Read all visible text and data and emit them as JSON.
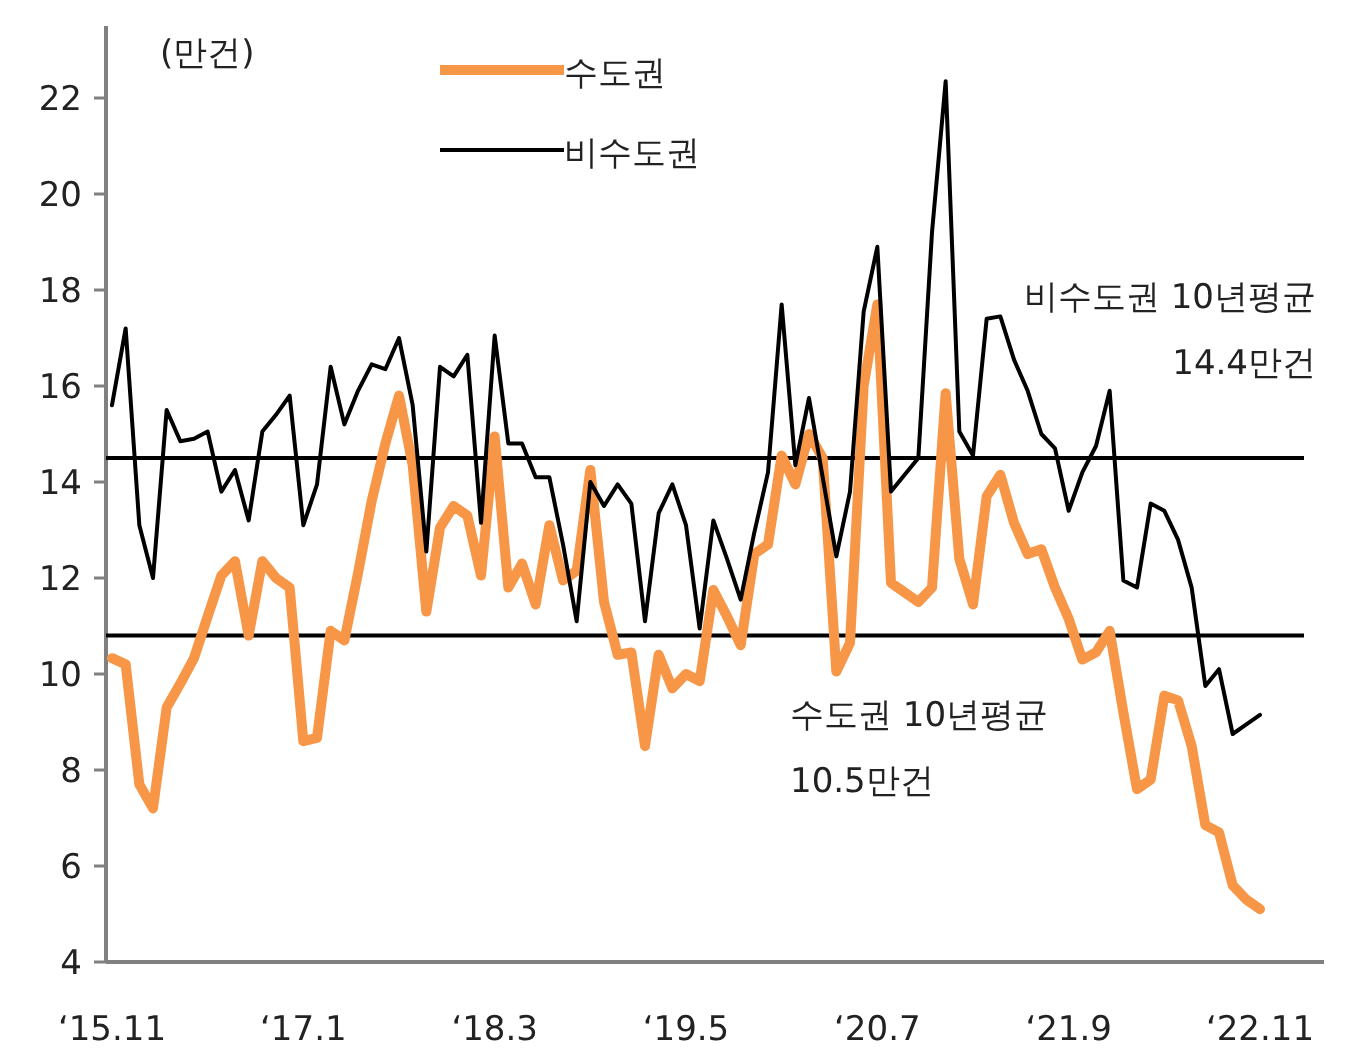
{
  "chart_data": {
    "type": "line",
    "ylabel": "(만건)",
    "categories": [
      "‘15.11",
      null,
      null,
      null,
      null,
      null,
      null,
      null,
      null,
      null,
      null,
      null,
      null,
      null,
      "‘17.1",
      null,
      null,
      null,
      null,
      null,
      null,
      null,
      null,
      null,
      null,
      null,
      null,
      null,
      "‘18.3",
      null,
      null,
      null,
      null,
      null,
      null,
      null,
      null,
      null,
      null,
      null,
      null,
      null,
      "‘19.5",
      null,
      null,
      null,
      null,
      null,
      null,
      null,
      null,
      null,
      null,
      null,
      null,
      null,
      "‘20.7",
      null,
      null,
      null,
      null,
      null,
      null,
      null,
      null,
      null,
      null,
      null,
      null,
      null,
      "‘21.9",
      null,
      null,
      null,
      null,
      null,
      null,
      null,
      null,
      null,
      null,
      null,
      null,
      null,
      "‘22.11"
    ],
    "series": [
      {
        "name": "수도권",
        "color": "#f79646",
        "values": [
          10.33,
          10.2,
          7.7,
          7.2,
          9.3,
          9.8,
          10.33,
          11.2,
          12.05,
          12.35,
          10.8,
          12.35,
          12.0,
          11.8,
          8.6,
          8.67,
          10.9,
          10.7,
          12.1,
          13.6,
          14.8,
          15.8,
          14.35,
          11.3,
          13.05,
          13.5,
          13.3,
          12.05,
          14.95,
          11.8,
          12.3,
          11.45,
          13.1,
          11.95,
          12.15,
          14.25,
          11.5,
          10.4,
          10.45,
          8.5,
          10.4,
          9.7,
          10.0,
          9.85,
          11.75,
          11.2,
          10.6,
          12.5,
          12.7,
          14.55,
          13.95,
          15.0,
          14.5,
          10.05,
          10.65,
          16.0,
          17.7,
          11.9,
          11.7,
          11.5,
          11.8,
          15.85,
          12.4,
          11.45,
          13.7,
          14.15,
          13.15,
          12.5,
          12.6,
          11.8,
          11.15,
          10.3,
          10.45,
          10.9,
          9.2,
          7.6,
          7.8,
          9.55,
          9.45,
          8.5,
          6.85,
          6.7,
          5.6,
          5.3,
          5.1
        ]
      },
      {
        "name": "비수도권",
        "color": "#000000",
        "values": [
          15.6,
          17.2,
          13.1,
          12.0,
          15.5,
          14.85,
          14.9,
          15.05,
          13.8,
          14.25,
          13.2,
          15.05,
          15.4,
          15.8,
          13.1,
          13.95,
          16.4,
          15.2,
          15.9,
          16.45,
          16.35,
          17.0,
          15.6,
          12.55,
          16.4,
          16.2,
          16.65,
          13.15,
          17.05,
          14.8,
          14.8,
          14.1,
          14.1,
          12.7,
          11.1,
          14.0,
          13.5,
          13.95,
          13.55,
          11.1,
          13.35,
          13.95,
          13.1,
          10.95,
          13.2,
          12.4,
          11.55,
          12.95,
          14.2,
          17.7,
          14.35,
          15.75,
          14.1,
          12.45,
          13.8,
          17.55,
          18.9,
          13.8,
          14.15,
          14.5,
          19.2,
          22.35,
          15.05,
          14.55,
          17.4,
          17.45,
          16.55,
          15.9,
          15.0,
          14.7,
          13.4,
          14.2,
          14.75,
          15.9,
          11.95,
          11.8,
          13.55,
          13.4,
          12.8,
          11.8,
          9.75,
          10.1,
          8.75,
          8.95,
          9.15
        ]
      }
    ],
    "ref_lines": [
      {
        "axis": "y",
        "value": 14.5,
        "label": "비수도권 10년평균\n14.4만건",
        "color": "#000000"
      },
      {
        "axis": "y",
        "value": 10.8,
        "label": "수도권 10년평균\n10.5만건",
        "color": "#000000"
      }
    ],
    "ylim": [
      4,
      23.5
    ],
    "yticks": [
      4,
      6,
      8,
      10,
      12,
      14,
      16,
      18,
      20,
      22
    ],
    "grid": false,
    "legend": "top"
  }
}
